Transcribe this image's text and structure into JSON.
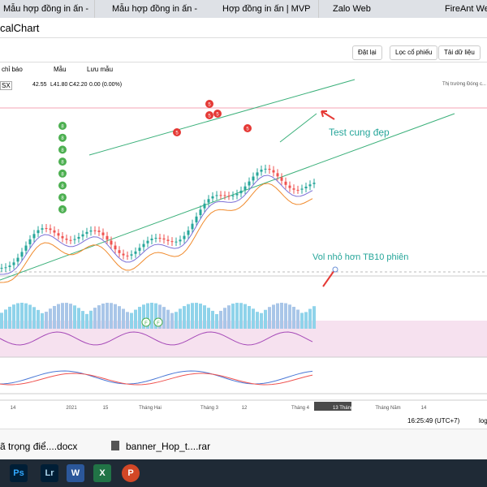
{
  "browser": {
    "tabs": [
      "Mẫu hợp đồng in ấn -",
      "Mẫu hợp đồng in ấn -",
      "Hợp đồng in ấn | MVP",
      "Zalo Web",
      "FireAnt Web"
    ],
    "address": "calChart"
  },
  "toolbar": {
    "buttons": [
      "Đặt lại",
      "Lọc cổ phiếu",
      "Tải dữ liệu"
    ],
    "menu": [
      "chỉ báo",
      "Mẫu",
      "Lưu mẫu"
    ]
  },
  "legend": {
    "symbol": "SX",
    "open": "42.55",
    "low": "L41.80",
    "close": "C42.20",
    "change": "0.00 (0.00%)",
    "status": "Thị trường Đóng c..."
  },
  "annotations": [
    "Test cung đẹp",
    "Vol nhỏ hơn TB10 phiên"
  ],
  "signals": {
    "green": [
      "8",
      "8",
      "8",
      "8",
      "8",
      "8",
      "8",
      "8"
    ],
    "red": [
      "5",
      "5",
      "5",
      "5",
      "5"
    ],
    "fund": [
      "F",
      "F"
    ]
  },
  "x_axis": [
    "14",
    "2021",
    "15",
    "Tháng Hai",
    "Tháng 3",
    "12",
    "Tháng 4",
    "13 Tháng 4 '21",
    "Tháng Năm",
    "14"
  ],
  "footer": {
    "time": "16:25:49 (UTC+7)",
    "scale": "log"
  },
  "downloads": [
    "ã trọng điể....docx",
    "banner_Hop_t....rar"
  ],
  "taskbar": [
    "Ps",
    "Lr",
    "W",
    "X",
    "P"
  ]
}
